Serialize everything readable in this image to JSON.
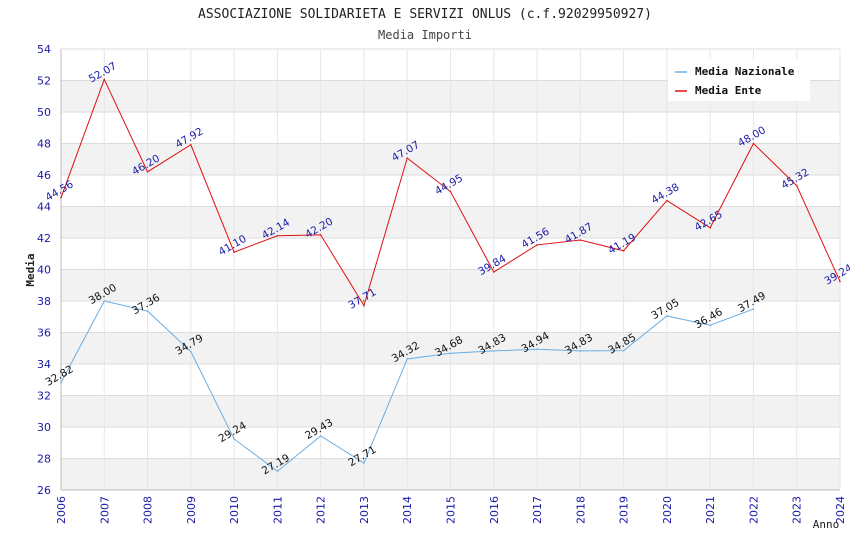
{
  "chart_data": {
    "type": "line",
    "title": "ASSOCIAZIONE SOLIDARIETA E SERVIZI ONLUS (c.f.92029950927)",
    "subtitle": "Media Importi",
    "ylabel": "Media",
    "xlabel": "Anno",
    "x": [
      2006,
      2007,
      2008,
      2009,
      2010,
      2011,
      2012,
      2013,
      2014,
      2015,
      2016,
      2017,
      2018,
      2019,
      2020,
      2021,
      2022,
      2023,
      2024
    ],
    "ylim": [
      26,
      54
    ],
    "yticks": [
      26,
      28,
      30,
      32,
      34,
      36,
      38,
      40,
      42,
      44,
      46,
      48,
      50,
      52,
      54
    ],
    "grid": true,
    "legend_position": "top-right",
    "series": [
      {
        "name": "Media Nazionale",
        "color": "#6aaee6",
        "x": [
          2006,
          2007,
          2008,
          2009,
          2010,
          2011,
          2012,
          2013,
          2014,
          2015,
          2016,
          2017,
          2018,
          2019,
          2020,
          2021,
          2022
        ],
        "values": [
          32.82,
          38.0,
          37.36,
          34.79,
          29.24,
          27.19,
          29.43,
          27.71,
          34.32,
          34.68,
          34.83,
          34.94,
          34.83,
          34.85,
          37.05,
          36.46,
          37.49
        ],
        "labels": [
          "32.82",
          "38.00",
          "37.36",
          "34.79",
          "29.24",
          "27.19",
          "29.43",
          "27.71",
          "34.32",
          "34.68",
          "34.83",
          "34.94",
          "34.83",
          "34.85",
          "37.05",
          "36.46",
          "37.49"
        ]
      },
      {
        "name": "Media Ente",
        "color": "#e01010",
        "x": [
          2006,
          2007,
          2008,
          2009,
          2010,
          2011,
          2012,
          2013,
          2014,
          2015,
          2016,
          2017,
          2018,
          2019,
          2020,
          2021,
          2022,
          2023,
          2024
        ],
        "values": [
          44.56,
          52.07,
          46.2,
          47.92,
          41.1,
          42.14,
          42.2,
          37.71,
          47.07,
          44.95,
          39.84,
          41.56,
          41.87,
          41.19,
          44.38,
          42.65,
          48.0,
          45.32,
          39.24
        ],
        "labels": [
          "44.56",
          "52.07",
          "46.20",
          "47.92",
          "41.10",
          "42.14",
          "42.20",
          "37.71",
          "47.07",
          "44.95",
          "39.84",
          "41.56",
          "41.87",
          "41.19",
          "44.38",
          "42.65",
          "48.00",
          "45.32",
          "39.24"
        ]
      }
    ]
  }
}
